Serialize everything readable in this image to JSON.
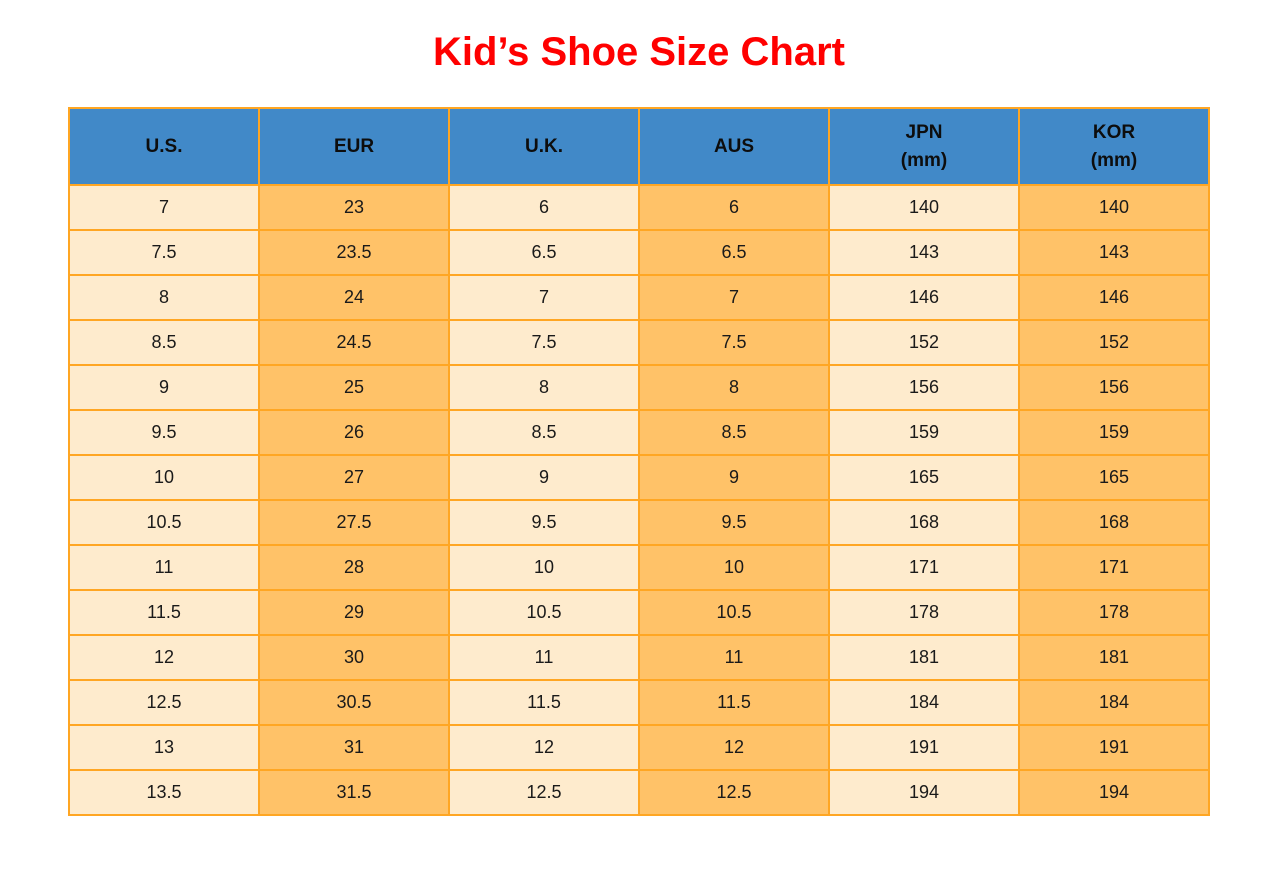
{
  "title": "Kid’s Shoe Size Chart",
  "colors": {
    "title": "#FF0000",
    "header_bg": "#4189C8",
    "col_light": "#FEEBCD",
    "col_dark": "#FFC268",
    "border": "#FFA623",
    "header_text": "#0D0D0D",
    "cell_text": "#1A1A1A"
  },
  "table": {
    "columns": [
      {
        "key": "us",
        "label": "U.S.",
        "sublabel": ""
      },
      {
        "key": "eur",
        "label": "EUR",
        "sublabel": ""
      },
      {
        "key": "uk",
        "label": "U.K.",
        "sublabel": ""
      },
      {
        "key": "aus",
        "label": "AUS",
        "sublabel": ""
      },
      {
        "key": "jpn",
        "label": "JPN",
        "sublabel": "(mm)"
      },
      {
        "key": "kor",
        "label": "KOR",
        "sublabel": "(mm)"
      }
    ],
    "rows": [
      [
        "7",
        "23",
        "6",
        "6",
        "140",
        "140"
      ],
      [
        "7.5",
        "23.5",
        "6.5",
        "6.5",
        "143",
        "143"
      ],
      [
        "8",
        "24",
        "7",
        "7",
        "146",
        "146"
      ],
      [
        "8.5",
        "24.5",
        "7.5",
        "7.5",
        "152",
        "152"
      ],
      [
        "9",
        "25",
        "8",
        "8",
        "156",
        "156"
      ],
      [
        "9.5",
        "26",
        "8.5",
        "8.5",
        "159",
        "159"
      ],
      [
        "10",
        "27",
        "9",
        "9",
        "165",
        "165"
      ],
      [
        "10.5",
        "27.5",
        "9.5",
        "9.5",
        "168",
        "168"
      ],
      [
        "11",
        "28",
        "10",
        "10",
        "171",
        "171"
      ],
      [
        "11.5",
        "29",
        "10.5",
        "10.5",
        "178",
        "178"
      ],
      [
        "12",
        "30",
        "11",
        "11",
        "181",
        "181"
      ],
      [
        "12.5",
        "30.5",
        "11.5",
        "11.5",
        "184",
        "184"
      ],
      [
        "13",
        "31",
        "12",
        "12",
        "191",
        "191"
      ],
      [
        "13.5",
        "31.5",
        "12.5",
        "12.5",
        "194",
        "194"
      ]
    ]
  },
  "chart_data": {
    "type": "table",
    "title": "Kid’s Shoe Size Chart",
    "columns": [
      "U.S.",
      "EUR",
      "U.K.",
      "AUS",
      "JPN (mm)",
      "KOR (mm)"
    ],
    "rows": [
      [
        7,
        23,
        6,
        6,
        140,
        140
      ],
      [
        7.5,
        23.5,
        6.5,
        6.5,
        143,
        143
      ],
      [
        8,
        24,
        7,
        7,
        146,
        146
      ],
      [
        8.5,
        24.5,
        7.5,
        7.5,
        152,
        152
      ],
      [
        9,
        25,
        8,
        8,
        156,
        156
      ],
      [
        9.5,
        26,
        8.5,
        8.5,
        159,
        159
      ],
      [
        10,
        27,
        9,
        9,
        165,
        165
      ],
      [
        10.5,
        27.5,
        9.5,
        9.5,
        168,
        168
      ],
      [
        11,
        28,
        10,
        10,
        171,
        171
      ],
      [
        11.5,
        29,
        10.5,
        10.5,
        178,
        178
      ],
      [
        12,
        30,
        11,
        11,
        181,
        181
      ],
      [
        12.5,
        30.5,
        11.5,
        11.5,
        184,
        184
      ],
      [
        13,
        31,
        12,
        12,
        191,
        191
      ],
      [
        13.5,
        31.5,
        12.5,
        12.5,
        194,
        194
      ]
    ],
    "layout_hints": {
      "header_fill": "blue",
      "column_fill_alternating": [
        "cream",
        "orange"
      ],
      "grid": "orange borders"
    }
  }
}
